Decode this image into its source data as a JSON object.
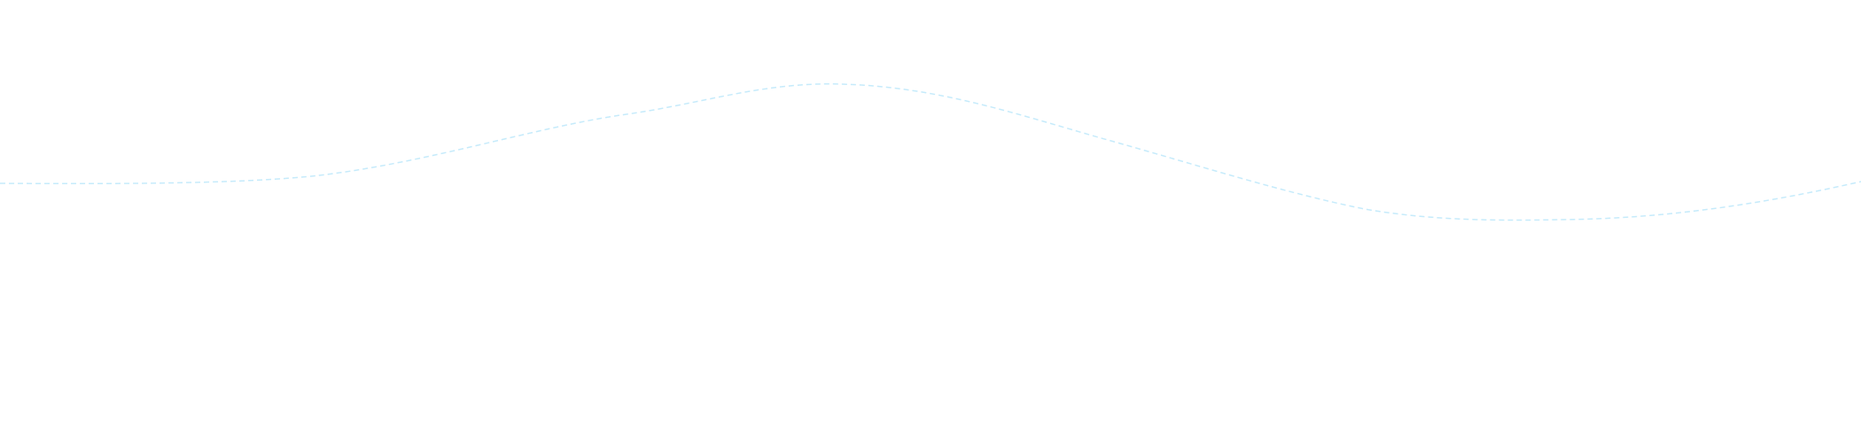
{
  "decoration": {
    "wave_line_color": "#c6ebfb",
    "wave_line_style": "dashed"
  }
}
